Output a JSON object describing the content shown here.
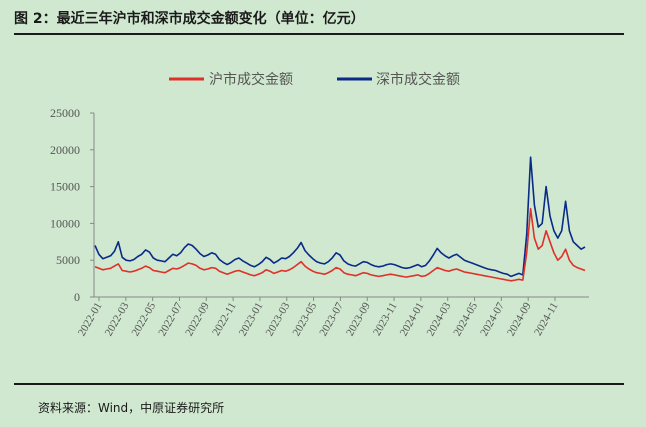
{
  "header": {
    "title": "图 2：最近三年沪市和深市成交金额变化（单位：亿元）"
  },
  "footer": {
    "source": "资料来源：Wind，中原证券研究所"
  },
  "chart_data": {
    "type": "line",
    "title": "",
    "xlabel": "",
    "ylabel": "",
    "ylim": [
      0,
      25000
    ],
    "yticks": [
      "0",
      "5000",
      "10000",
      "15000",
      "20000",
      "25000"
    ],
    "x_ticks": [
      "2022-01",
      "2022-03",
      "2022-05",
      "2022-07",
      "2022-09",
      "2022-11",
      "2023-01",
      "2023-03",
      "2023-05",
      "2023-07",
      "2023-09",
      "2023-11",
      "2024-01",
      "2024-03",
      "2024-05",
      "2024-07",
      "2024-09",
      "2024-11"
    ],
    "legend_position": "top-center",
    "series": [
      {
        "name": "沪市成交金额",
        "color": "#e0302a",
        "values": [
          4100,
          3900,
          3700,
          3800,
          3900,
          4200,
          4500,
          3600,
          3500,
          3400,
          3500,
          3700,
          3900,
          4200,
          4000,
          3600,
          3500,
          3400,
          3300,
          3600,
          3900,
          3800,
          4000,
          4300,
          4600,
          4500,
          4300,
          3900,
          3700,
          3800,
          4000,
          3900,
          3500,
          3300,
          3100,
          3300,
          3500,
          3600,
          3400,
          3200,
          3000,
          2900,
          3100,
          3300,
          3700,
          3500,
          3200,
          3400,
          3600,
          3500,
          3700,
          4000,
          4400,
          4800,
          4200,
          3800,
          3500,
          3300,
          3200,
          3100,
          3300,
          3600,
          4000,
          3800,
          3300,
          3100,
          3000,
          2900,
          3100,
          3300,
          3200,
          3000,
          2900,
          2800,
          2900,
          3000,
          3100,
          3000,
          2900,
          2800,
          2700,
          2800,
          2900,
          3000,
          2800,
          2900,
          3200,
          3600,
          4000,
          3800,
          3600,
          3500,
          3700,
          3800,
          3600,
          3400,
          3300,
          3200,
          3100,
          3000,
          2900,
          2800,
          2700,
          2600,
          2500,
          2400,
          2300,
          2200,
          2300,
          2400,
          2300,
          6000,
          12000,
          8000,
          6500,
          7000,
          9000,
          7500,
          6000,
          5000,
          5500,
          6500,
          5000,
          4300,
          4000,
          3800,
          3600
        ]
      },
      {
        "name": "深市成交金额",
        "color": "#0a2a88",
        "values": [
          7000,
          5800,
          5200,
          5400,
          5600,
          6200,
          7500,
          5400,
          5000,
          4900,
          5100,
          5500,
          5800,
          6400,
          6100,
          5300,
          5000,
          4900,
          4800,
          5300,
          5800,
          5600,
          6000,
          6700,
          7200,
          7000,
          6500,
          5900,
          5500,
          5700,
          6000,
          5800,
          5100,
          4700,
          4400,
          4700,
          5100,
          5300,
          4900,
          4600,
          4300,
          4100,
          4400,
          4800,
          5400,
          5100,
          4600,
          4900,
          5300,
          5200,
          5500,
          6000,
          6600,
          7400,
          6300,
          5700,
          5200,
          4800,
          4600,
          4500,
          4800,
          5300,
          6000,
          5700,
          4900,
          4500,
          4300,
          4200,
          4500,
          4800,
          4700,
          4400,
          4200,
          4100,
          4200,
          4400,
          4500,
          4400,
          4200,
          4000,
          3900,
          4000,
          4200,
          4400,
          4100,
          4300,
          4900,
          5700,
          6600,
          6000,
          5600,
          5300,
          5600,
          5800,
          5400,
          5000,
          4800,
          4600,
          4400,
          4200,
          4000,
          3800,
          3700,
          3600,
          3400,
          3200,
          3100,
          2800,
          3000,
          3200,
          3000,
          8500,
          19000,
          12500,
          9500,
          10000,
          15000,
          11000,
          9000,
          8000,
          9000,
          13000,
          9000,
          7500,
          7000,
          6500,
          6800
        ]
      }
    ]
  }
}
